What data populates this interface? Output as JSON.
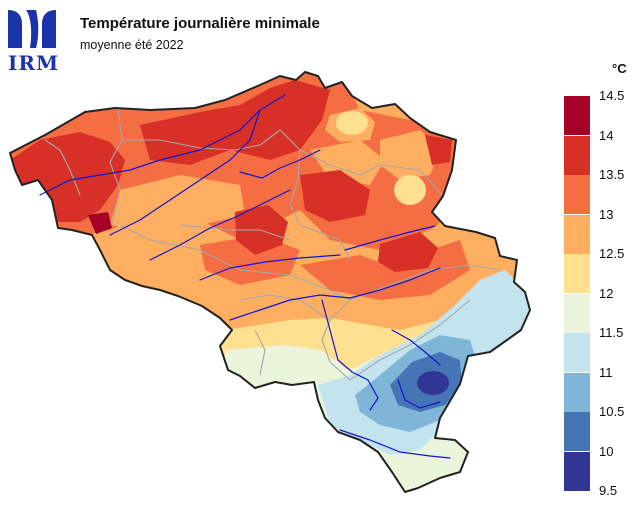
{
  "header": {
    "logo_text": "IRM",
    "title": "Température journalière minimale",
    "subtitle": "moyenne été 2022"
  },
  "legend": {
    "unit": "°C",
    "bins": [
      {
        "from": 14.0,
        "to": 14.5,
        "color": "#a50026"
      },
      {
        "from": 13.5,
        "to": 14.0,
        "color": "#d73027"
      },
      {
        "from": 13.0,
        "to": 13.5,
        "color": "#f46d43"
      },
      {
        "from": 12.5,
        "to": 13.0,
        "color": "#fdae61"
      },
      {
        "from": 12.0,
        "to": 12.5,
        "color": "#fee090"
      },
      {
        "from": 11.5,
        "to": 12.0,
        "color": "#eaf5dc"
      },
      {
        "from": 11.0,
        "to": 11.5,
        "color": "#c3e3ef"
      },
      {
        "from": 10.5,
        "to": 11.0,
        "color": "#7fb6d8"
      },
      {
        "from": 10.0,
        "to": 10.5,
        "color": "#4575b4"
      },
      {
        "from": 9.5,
        "to": 10.0,
        "color": "#313695"
      }
    ],
    "ticks": [
      "14.5",
      "14",
      "13.5",
      "13",
      "12.5",
      "12",
      "11.5",
      "11",
      "10.5",
      "10",
      "9.5"
    ]
  },
  "map": {
    "region": "Belgique",
    "border_color": "#222222",
    "province_color": "#a8a8a8",
    "river_color": "#1414d0"
  }
}
